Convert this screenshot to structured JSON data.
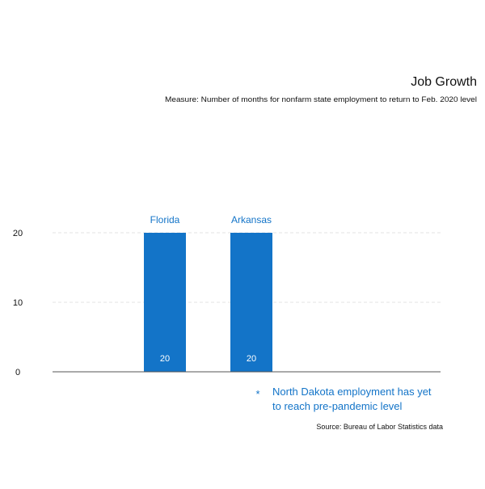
{
  "chart_data": {
    "type": "bar",
    "title": "Job Growth",
    "subtitle": "Measure: Number of months for nonfarm state employment to return to Feb. 2020 level",
    "categories": [
      "Florida",
      "Arkansas"
    ],
    "values": [
      20,
      20
    ],
    "data_labels": [
      "20",
      "20"
    ],
    "yticks": [
      "0",
      "10",
      "20"
    ],
    "ylim": [
      0,
      20
    ],
    "grid": true,
    "xlabel": "",
    "ylabel": "",
    "annotation": {
      "marker": "*",
      "line1": "North Dakota employment has yet",
      "line2": "to reach pre-pandemic level"
    },
    "source": "Source: Bureau of Labor Statistics data",
    "colors": {
      "bar": "#1374c8",
      "category_label": "#1374c8",
      "data_label": "#ffffff",
      "annotation": "#1374c8",
      "grid": "#e3e3e3",
      "axis": "#555555",
      "text": "#111111"
    }
  }
}
